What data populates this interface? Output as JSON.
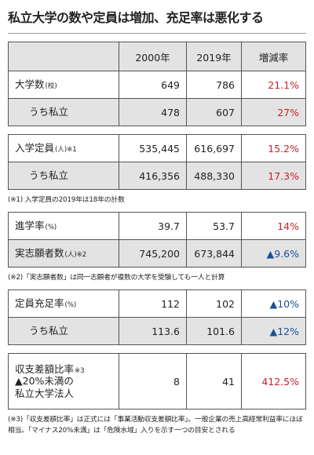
{
  "header": {
    "title": "私立大学の数や定員は増加、充足率は悪化する"
  },
  "table": {
    "columns": [
      "2000年",
      "2019年",
      "増減率"
    ],
    "blocks": [
      {
        "rows": [
          {
            "label": [
              "大学数"
            ],
            "unit": "(校)",
            "values": [
              "649",
              "786"
            ],
            "change": "21.1%",
            "change_color": "#c8202f"
          },
          {
            "label": [
              "うち私立"
            ],
            "indent": true,
            "values": [
              "478",
              "607"
            ],
            "change": "27%",
            "change_color": "#c8202f"
          }
        ]
      },
      {
        "rows": [
          {
            "label": [
              "入学定員"
            ],
            "unit": "(人)※1",
            "values": [
              "535,445",
              "616,697"
            ],
            "change": "15.2%",
            "change_color": "#c8202f"
          },
          {
            "label": [
              "うち私立"
            ],
            "indent": true,
            "values": [
              "416,356",
              "488,330"
            ],
            "change": "17.3%",
            "change_color": "#c8202f"
          }
        ],
        "note": "(※1) 入学定員の2019年は18年の計数"
      },
      {
        "rows": [
          {
            "label": [
              "進学率"
            ],
            "unit": "(%)",
            "values": [
              "39.7",
              "53.7"
            ],
            "change": "14%",
            "change_color": "#c8202f"
          },
          {
            "label": [
              "実志願者数"
            ],
            "unit": "(人)※2",
            "values": [
              "745,200",
              "673,844"
            ],
            "change": "▲9.6%",
            "change_color": "#1a4f95"
          }
        ],
        "note": "(※2)「実志願者数」は同一志願者が複数の大学を受験しても一人と計算"
      },
      {
        "rows": [
          {
            "label": [
              "定員充足率"
            ],
            "unit": "(%)",
            "values": [
              "112",
              "102"
            ],
            "change": "▲10%",
            "change_color": "#1a4f95"
          },
          {
            "label": [
              "うち私立"
            ],
            "indent": true,
            "values": [
              "113.6",
              "101.6"
            ],
            "change": "▲12%",
            "change_color": "#1a4f95"
          }
        ]
      },
      {
        "rows": [
          {
            "label": [
              "収支差額比率",
              "▲20%未満の",
              "私立大学法人"
            ],
            "unit": "※3",
            "values": [
              "8",
              "41"
            ],
            "change": "412.5%",
            "change_color": "#c8202f"
          }
        ],
        "note": "(※3)「収支差額比率」は正式には「事業活動収支差額比率」。一般企業の売上高経常利益率にほぼ相当。「マイナス20%未満」は「危険水域」入りを示す一つの目安とされる"
      }
    ]
  }
}
